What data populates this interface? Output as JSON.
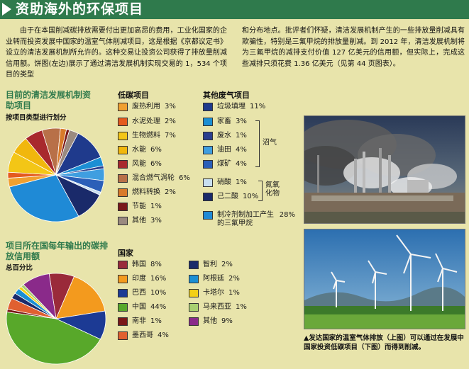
{
  "header": {
    "title": "资助海外的环保项目"
  },
  "intro": {
    "left": "由于在本国削减碳排放需要付出更加高昂的费用，工业化国家的企业转而投资发展中国家的温室气体削减项目，这是根据《京都议定书》设立的清洁发展机制所允许的。这种交易让投资公司获得了排放量削减信用额。饼图(左边)展示了通过清洁发展机制实现交易的 1，534 个项目的类型",
    "right": "和分布地点。批评者们怀疑，清洁发展机制产生的一些排放量削减具有欺骗性，特别是三氟甲烷的排放量削减。到 2012 年，清洁发展机制将为三氟甲烷的减排支付价值 127 亿美元的信用额，但实际上，完成这些减排只须花费 1.36 亿美元（见第 44 页图表）。"
  },
  "chart1": {
    "title": "目前的清洁发展机制资助项目",
    "subtitle": "按项目类型进行划分"
  },
  "chart2": {
    "title": "项目所在国每年输出的碳排放信用额",
    "subtitle": "总百分比"
  },
  "low_carbon": {
    "heading": "低碳项目",
    "items": [
      {
        "label": "废热利用",
        "pct": "3%",
        "color": "#f0a030"
      },
      {
        "label": "水泥处理",
        "pct": "2%",
        "color": "#e45a1e"
      },
      {
        "label": "生物燃料",
        "pct": "7%",
        "color": "#f3c616"
      },
      {
        "label": "水能",
        "pct": "6%",
        "color": "#f1b70d"
      },
      {
        "label": "风能",
        "pct": "6%",
        "color": "#a8292d"
      },
      {
        "label": "混合燃气涡轮",
        "pct": "6%",
        "color": "#b87048"
      },
      {
        "label": "燃料转换",
        "pct": "2%",
        "color": "#d87a2a"
      },
      {
        "label": "节能",
        "pct": "1%",
        "color": "#7a1818"
      },
      {
        "label": "其他",
        "pct": "3%",
        "color": "#9a8a80"
      }
    ]
  },
  "other_gas": {
    "heading": "其他废气项目",
    "items": [
      {
        "label": "垃圾填埋",
        "pct": "11%",
        "color": "#1f3a8c"
      },
      {
        "label": "家畜",
        "pct": "3%",
        "color": "#1b8fd4"
      },
      {
        "label": "废水",
        "pct": "1%",
        "color": "#2a3e8e"
      },
      {
        "label": "油田",
        "pct": "4%",
        "color": "#3f9ee0"
      },
      {
        "label": "煤矿",
        "pct": "4%",
        "color": "#2b5fb8"
      },
      {
        "label": "硝酸",
        "pct": "1%",
        "color": "#c8dff0"
      },
      {
        "label": "己二酸",
        "pct": "10%",
        "color": "#1a2a6a"
      },
      {
        "label": "制冷剂制加工产生的三氟甲烷",
        "pct": "28%",
        "color": "#1f8ad6"
      }
    ],
    "group_methane": "沼气",
    "group_nitrous": "氮氧化物"
  },
  "countries": {
    "heading": "国家",
    "items": [
      {
        "label": "韩国",
        "pct": "8%",
        "color": "#9a2a3a"
      },
      {
        "label": "印度",
        "pct": "16%",
        "color": "#f39a1e"
      },
      {
        "label": "巴西",
        "pct": "10%",
        "color": "#1c3a94"
      },
      {
        "label": "中国",
        "pct": "44%",
        "color": "#58a82a"
      },
      {
        "label": "南非",
        "pct": "1%",
        "color": "#7a1818"
      },
      {
        "label": "墨西哥",
        "pct": "4%",
        "color": "#e06030"
      },
      {
        "label": "智利",
        "pct": "2%",
        "color": "#1a2a6a"
      },
      {
        "label": "阿根廷",
        "pct": "2%",
        "color": "#1b8fd4"
      },
      {
        "label": "卡塔尔",
        "pct": "1%",
        "color": "#f3d016"
      },
      {
        "label": "马来西亚",
        "pct": "1%",
        "color": "#a8d070"
      },
      {
        "label": "其他",
        "pct": "9%",
        "color": "#8a2a8a"
      }
    ]
  },
  "chart_data": [
    {
      "type": "pie",
      "title": "目前的清洁发展机制资助项目",
      "subtitle": "按项目类型进行划分",
      "categories": [
        "废热利用",
        "水泥处理",
        "生物燃料",
        "水能",
        "风能",
        "混合燃气涡轮",
        "燃料转换",
        "节能",
        "其他",
        "垃圾填埋",
        "家畜",
        "废水",
        "油田",
        "煤矿",
        "硝酸",
        "己二酸",
        "制冷剂制加工产生的三氟甲烷"
      ],
      "values": [
        3,
        2,
        7,
        6,
        6,
        6,
        2,
        1,
        3,
        11,
        3,
        1,
        4,
        4,
        1,
        10,
        28
      ]
    },
    {
      "type": "pie",
      "title": "项目所在国每年输出的碳排放信用额",
      "subtitle": "总百分比",
      "categories": [
        "韩国",
        "印度",
        "巴西",
        "中国",
        "南非",
        "墨西哥",
        "智利",
        "阿根廷",
        "卡塔尔",
        "马来西亚",
        "其他"
      ],
      "values": [
        8,
        16,
        10,
        44,
        1,
        4,
        2,
        2,
        1,
        1,
        9
      ]
    }
  ],
  "caption": "▲发达国家的温室气体排放（上图）可以通过在发展中国家投资低碳项目（下图）而得到削减。"
}
